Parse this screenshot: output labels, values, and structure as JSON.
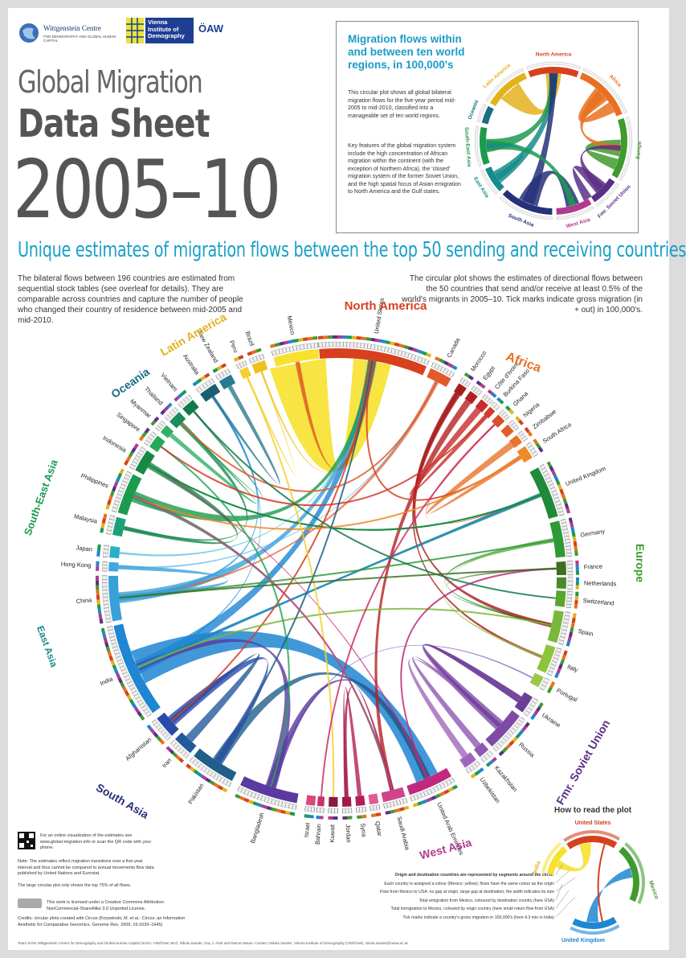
{
  "logos": {
    "wittgenstein": "Wittgenstein Centre",
    "wittgenstein_sub": "FOR DEMOGRAPHY AND GLOBAL HUMAN CAPITAL",
    "vid": "Vienna Institute of Demography",
    "oaw": "ÖAW"
  },
  "title": {
    "line1": "Global Migration",
    "line2": "Data Sheet",
    "line3": "2005–10"
  },
  "subtitle": "Unique estimates of migration flows between the top 50 sending and receiving countries",
  "intro_left": "The bilateral flows between 196 countries are estimated from sequential stock tables (see overleaf for details). They are comparable across countries and capture the number of people who changed their country of residence between mid-2005 and mid-2010.",
  "intro_right": "The circular plot shows the estimates of directional flows between the 50 countries that send and/or receive at least 0.5% of the world's migrants in 2005–10. Tick marks indicate gross migration (in + out) in 100,000's.",
  "inset": {
    "title": "Migration flows within and between ten world regions, in 100,000's",
    "para1": "This circular plot shows all global bilateral migration flows for the five-year period mid-2005 to mid-2010, classified into a manageable set of ten world regions.",
    "para2": "Key features of the global migration system include the high concentration of African migration within the continent (with the exception of Northern Africa), the 'closed' migration system of the former Soviet Union, and the high spatial focus of Asian emigration to North America and the Gulf states.",
    "regions": [
      "North America",
      "Africa",
      "Europe",
      "Fmr. Soviet Union",
      "West Asia",
      "South Asia",
      "East Asia",
      "South-East Asia",
      "Oceania",
      "Latin America"
    ]
  },
  "regions": {
    "north_america": "North America",
    "africa": "Africa",
    "europe": "Europe",
    "fsu": "Fmr. Soviet Union",
    "west_asia": "West Asia",
    "south_asia": "South Asia",
    "east_asia": "East Asia",
    "sea": "South-East Asia",
    "oceania": "Oceania",
    "latin_america": "Latin America"
  },
  "region_colors": {
    "north_america": "#d6401f",
    "africa": "#e8701e",
    "europe": "#3f9b2e",
    "fsu": "#5a2f86",
    "west_asia": "#b23a8c",
    "south_asia": "#27317a",
    "east_asia": "#178b8c",
    "sea": "#1c9a4e",
    "oceania": "#1a6e82",
    "latin_america": "#e2b21c"
  },
  "countries": [
    {
      "name": "United States",
      "region": "north_america",
      "color": "#d6401f"
    },
    {
      "name": "Canada",
      "region": "north_america",
      "color": "#e35a2a"
    },
    {
      "name": "Morocco",
      "region": "africa",
      "color": "#a61c1c"
    },
    {
      "name": "Egypt",
      "region": "africa",
      "color": "#b52020"
    },
    {
      "name": "Côte d'Ivoire",
      "region": "africa",
      "color": "#c82c2c"
    },
    {
      "name": "Burkina Faso",
      "region": "africa",
      "color": "#d23a2a"
    },
    {
      "name": "Ghana",
      "region": "africa",
      "color": "#d8502c"
    },
    {
      "name": "Nigeria",
      "region": "africa",
      "color": "#e0602a"
    },
    {
      "name": "Zimbabwe",
      "region": "africa",
      "color": "#e8742a"
    },
    {
      "name": "South Africa",
      "region": "africa",
      "color": "#ef8a26"
    },
    {
      "name": "United Kingdom",
      "region": "europe",
      "color": "#1e8a3a"
    },
    {
      "name": "Germany",
      "region": "europe",
      "color": "#2f9a35"
    },
    {
      "name": "France",
      "region": "europe",
      "color": "#3e6e22"
    },
    {
      "name": "Netherlands",
      "region": "europe",
      "color": "#4a8a2a"
    },
    {
      "name": "Switzerland",
      "region": "europe",
      "color": "#5aa52e"
    },
    {
      "name": "Spain",
      "region": "europe",
      "color": "#7ab83a"
    },
    {
      "name": "Italy",
      "region": "europe",
      "color": "#8cc43c"
    },
    {
      "name": "Portugal",
      "region": "europe",
      "color": "#9ac84a"
    },
    {
      "name": "Ukraine",
      "region": "fsu",
      "color": "#6a3f96"
    },
    {
      "name": "Russia",
      "region": "fsu",
      "color": "#7d4aa6"
    },
    {
      "name": "Kazakhstan",
      "region": "fsu",
      "color": "#8f58b2"
    },
    {
      "name": "Uzbekistan",
      "region": "fsu",
      "color": "#a066bc"
    },
    {
      "name": "United Arab Emirates",
      "region": "west_asia",
      "color": "#c02a7e"
    },
    {
      "name": "Saudi Arabia",
      "region": "west_asia",
      "color": "#d0448c"
    },
    {
      "name": "Qatar",
      "region": "west_asia",
      "color": "#e05a9a"
    },
    {
      "name": "Syria",
      "region": "west_asia",
      "color": "#b21e58"
    },
    {
      "name": "Jordan",
      "region": "west_asia",
      "color": "#9e1a4a"
    },
    {
      "name": "Kuwait",
      "region": "west_asia",
      "color": "#8a1840"
    },
    {
      "name": "Bahrain",
      "region": "west_asia",
      "color": "#c8326a"
    },
    {
      "name": "Israel",
      "region": "west_asia",
      "color": "#d84a7a"
    },
    {
      "name": "Bangladesh",
      "region": "south_asia",
      "color": "#5a3aa0"
    },
    {
      "name": "Pakistan",
      "region": "south_asia",
      "color": "#1f5f8a"
    },
    {
      "name": "Iran",
      "region": "south_asia",
      "color": "#245a9a"
    },
    {
      "name": "Afghanistan",
      "region": "south_asia",
      "color": "#2a4aa8"
    },
    {
      "name": "India",
      "region": "south_asia",
      "color": "#1e86d2"
    },
    {
      "name": "China",
      "region": "east_asia",
      "color": "#3aa0d8"
    },
    {
      "name": "Hong Kong",
      "region": "east_asia",
      "color": "#40a8e0"
    },
    {
      "name": "Japan",
      "region": "east_asia",
      "color": "#2ab0c8"
    },
    {
      "name": "Malaysia",
      "region": "sea",
      "color": "#1aa07a"
    },
    {
      "name": "Philippines",
      "region": "sea",
      "color": "#1c9a4e"
    },
    {
      "name": "Indonesia",
      "region": "sea",
      "color": "#168a45"
    },
    {
      "name": "Singapore",
      "region": "sea",
      "color": "#26a85a"
    },
    {
      "name": "Myanmar",
      "region": "sea",
      "color": "#30b065"
    },
    {
      "name": "Thailand",
      "region": "sea",
      "color": "#1a8c5a"
    },
    {
      "name": "Vietnam",
      "region": "sea",
      "color": "#127a4a"
    },
    {
      "name": "Australia",
      "region": "oceania",
      "color": "#1a5e72"
    },
    {
      "name": "New Zealand",
      "region": "oceania",
      "color": "#2a7a90"
    },
    {
      "name": "Peru",
      "region": "latin_america",
      "color": "#f4d030"
    },
    {
      "name": "Brazil",
      "region": "latin_america",
      "color": "#f0c020"
    },
    {
      "name": "Mexico",
      "region": "latin_america",
      "color": "#f7e12e"
    }
  ],
  "footer": {
    "online": "For an online visualization of the estimates see www.global-migration.info or scan the QR code with your phone.",
    "note": "Note: The estimates reflect migration transitions over a five-year interval and thus cannot be compared to annual movements flow data published by United Nations and Eurostat.",
    "note2": "The large circular plot only shows the top 75% of all flows.",
    "license": "This work is licensed under a Creative Commons Attribution-NonCommercial-ShareAlike 3.0 Unported License.",
    "credits": "Credits: circular plots created with Circos (Krzywinski, M. et al.: Circos: an Information Aesthetic for Comparative Genomics. Genome Res. 2009, 19:1639–1645)",
    "team": "Team at the Wittgenstein Centre for Demography and Global Human Capital (IIASA, VID/ÖAW, WU): Nikola Sander, Guy J. Abel and Ramon Bauer. Contact: Nikola Sander, Vienna Institute of Demography (VID/ÖAW), nikola.sander@oeaw.ac.at"
  },
  "howto": {
    "title": "How to read the plot",
    "labels": [
      "United States",
      "Mexico",
      "United Kingdom",
      "India"
    ],
    "lines": [
      "Origin and destination countries are represented by segments around the circle:",
      "Each country is assigned a colour (Mexico: yellow); flows have the same colour as the origin",
      "Flow from Mexico to USA: no gap at origin, large gap at destination; the width indicates its size",
      "Total emigration from Mexico, coloured by destination country (here USA)",
      "Total immigration to Mexico, coloured by origin country (here small return flow from USA)",
      "Tick marks indicate a country's gross migration in 100,000's (here 4.3 mio in India)"
    ]
  }
}
